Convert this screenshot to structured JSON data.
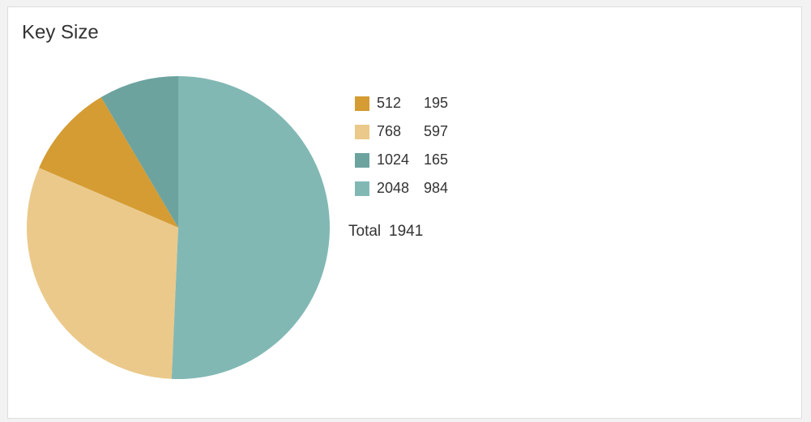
{
  "chart_data": {
    "type": "pie",
    "title": "Key Size",
    "categories": [
      "512",
      "768",
      "1024",
      "2048"
    ],
    "values": [
      195,
      597,
      165,
      984
    ],
    "colors": [
      "#d49c33",
      "#ebc98a",
      "#6ca39f",
      "#82b8b4"
    ],
    "total_label": "Total",
    "total": 1941
  }
}
